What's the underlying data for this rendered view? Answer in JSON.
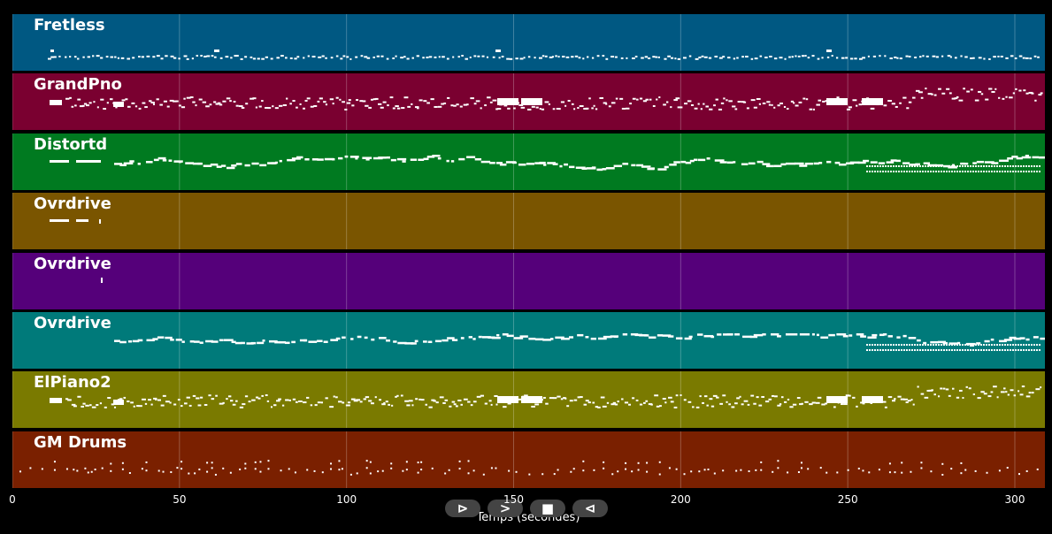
{
  "tracks": [
    {
      "name": "Fretless",
      "color": "#005882",
      "notes": "sparse-high"
    },
    {
      "name": "GrandPno",
      "color": "#7a0030",
      "notes": "dense-piano"
    },
    {
      "name": "Distortd",
      "color": "#007a20",
      "notes": "melody"
    },
    {
      "name": "Ovrdrive",
      "color": "#7a5500",
      "notes": "intro"
    },
    {
      "name": "Ovrdrive",
      "color": "#55007a",
      "notes": "single"
    },
    {
      "name": "Ovrdrive",
      "color": "#007a7a",
      "notes": "melody"
    },
    {
      "name": "ElPiano2",
      "color": "#7a7a00",
      "notes": "dense-piano"
    },
    {
      "name": "GM Drums",
      "color": "#7a2000",
      "notes": "drums"
    }
  ],
  "axis": {
    "xlabel": "Temps (secondes)",
    "xlim": [
      0,
      309
    ],
    "ticks": [
      0,
      50,
      100,
      150,
      200,
      250,
      300
    ],
    "grid": true
  },
  "controls": [
    {
      "name": "play-button",
      "symbol": "⊳"
    },
    {
      "name": "forward-button",
      "symbol": ">"
    },
    {
      "name": "stop-button",
      "symbol": "■"
    },
    {
      "name": "rewind-button",
      "symbol": "⊲"
    }
  ]
}
